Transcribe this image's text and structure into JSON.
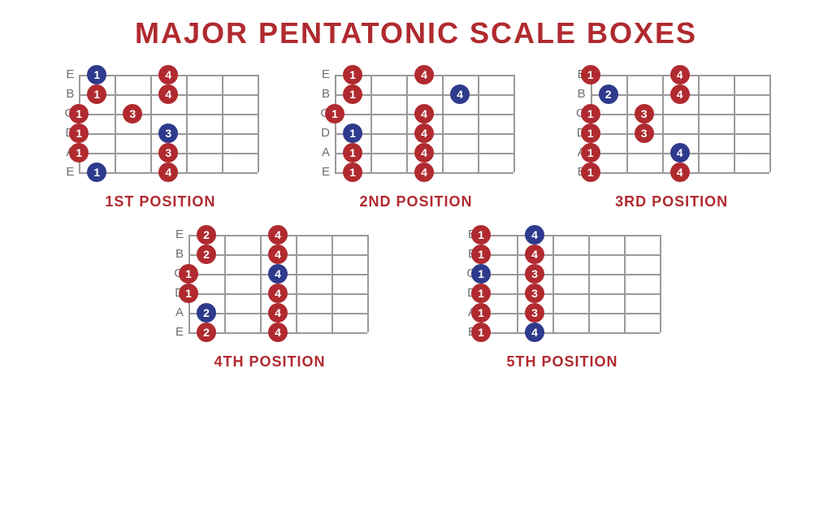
{
  "title": "MAJOR PENTATONIC SCALE BOXES",
  "colors": {
    "title": "#b02a2f",
    "red": "#b02a2f",
    "blue": "#2e3a8c",
    "grid": "#9a9a9a",
    "label": "#6e6e6e",
    "bg": "#ffffff"
  },
  "layout": {
    "frets": 5,
    "strings": 6,
    "fret_width": 44,
    "string_spacing": 24,
    "dot_diameter": 24,
    "string_names": [
      "E",
      "B",
      "G",
      "D",
      "A",
      "E"
    ]
  },
  "positions": [
    {
      "caption": "1ST POSITION",
      "dots": [
        {
          "string": 0,
          "fret": 1,
          "finger": "1",
          "color": "blue"
        },
        {
          "string": 0,
          "fret": 3,
          "finger": "4",
          "color": "red"
        },
        {
          "string": 1,
          "fret": 1,
          "finger": "1",
          "color": "red"
        },
        {
          "string": 1,
          "fret": 3,
          "finger": "4",
          "color": "red"
        },
        {
          "string": 2,
          "fret": 0,
          "finger": "1",
          "color": "red"
        },
        {
          "string": 2,
          "fret": 2,
          "finger": "3",
          "color": "red"
        },
        {
          "string": 3,
          "fret": 0,
          "finger": "1",
          "color": "red"
        },
        {
          "string": 3,
          "fret": 3,
          "finger": "3",
          "color": "blue"
        },
        {
          "string": 4,
          "fret": 0,
          "finger": "1",
          "color": "red"
        },
        {
          "string": 4,
          "fret": 3,
          "finger": "3",
          "color": "red"
        },
        {
          "string": 5,
          "fret": 1,
          "finger": "1",
          "color": "blue"
        },
        {
          "string": 5,
          "fret": 3,
          "finger": "4",
          "color": "red"
        }
      ]
    },
    {
      "caption": "2ND POSITION",
      "dots": [
        {
          "string": 0,
          "fret": 1,
          "finger": "1",
          "color": "red"
        },
        {
          "string": 0,
          "fret": 3,
          "finger": "4",
          "color": "red"
        },
        {
          "string": 1,
          "fret": 1,
          "finger": "1",
          "color": "red"
        },
        {
          "string": 1,
          "fret": 4,
          "finger": "4",
          "color": "blue"
        },
        {
          "string": 2,
          "fret": 0,
          "finger": "1",
          "color": "red"
        },
        {
          "string": 2,
          "fret": 3,
          "finger": "4",
          "color": "red"
        },
        {
          "string": 3,
          "fret": 1,
          "finger": "1",
          "color": "blue"
        },
        {
          "string": 3,
          "fret": 3,
          "finger": "4",
          "color": "red"
        },
        {
          "string": 4,
          "fret": 1,
          "finger": "1",
          "color": "red"
        },
        {
          "string": 4,
          "fret": 3,
          "finger": "4",
          "color": "red"
        },
        {
          "string": 5,
          "fret": 1,
          "finger": "1",
          "color": "red"
        },
        {
          "string": 5,
          "fret": 3,
          "finger": "4",
          "color": "red"
        }
      ]
    },
    {
      "caption": "3RD POSITION",
      "dots": [
        {
          "string": 0,
          "fret": 0,
          "finger": "1",
          "color": "red"
        },
        {
          "string": 0,
          "fret": 3,
          "finger": "4",
          "color": "red"
        },
        {
          "string": 1,
          "fret": 1,
          "finger": "2",
          "color": "blue"
        },
        {
          "string": 1,
          "fret": 3,
          "finger": "4",
          "color": "red"
        },
        {
          "string": 2,
          "fret": 0,
          "finger": "1",
          "color": "red"
        },
        {
          "string": 2,
          "fret": 2,
          "finger": "3",
          "color": "red"
        },
        {
          "string": 3,
          "fret": 0,
          "finger": "1",
          "color": "red"
        },
        {
          "string": 3,
          "fret": 2,
          "finger": "3",
          "color": "red"
        },
        {
          "string": 4,
          "fret": 0,
          "finger": "1",
          "color": "red"
        },
        {
          "string": 4,
          "fret": 3,
          "finger": "4",
          "color": "blue"
        },
        {
          "string": 5,
          "fret": 0,
          "finger": "1",
          "color": "red"
        },
        {
          "string": 5,
          "fret": 3,
          "finger": "4",
          "color": "red"
        }
      ]
    },
    {
      "caption": "4TH POSITION",
      "dots": [
        {
          "string": 0,
          "fret": 1,
          "finger": "2",
          "color": "red"
        },
        {
          "string": 0,
          "fret": 3,
          "finger": "4",
          "color": "red"
        },
        {
          "string": 1,
          "fret": 1,
          "finger": "2",
          "color": "red"
        },
        {
          "string": 1,
          "fret": 3,
          "finger": "4",
          "color": "red"
        },
        {
          "string": 2,
          "fret": 0,
          "finger": "1",
          "color": "red"
        },
        {
          "string": 2,
          "fret": 3,
          "finger": "4",
          "color": "blue"
        },
        {
          "string": 3,
          "fret": 0,
          "finger": "1",
          "color": "red"
        },
        {
          "string": 3,
          "fret": 3,
          "finger": "4",
          "color": "red"
        },
        {
          "string": 4,
          "fret": 1,
          "finger": "2",
          "color": "blue"
        },
        {
          "string": 4,
          "fret": 3,
          "finger": "4",
          "color": "red"
        },
        {
          "string": 5,
          "fret": 1,
          "finger": "2",
          "color": "red"
        },
        {
          "string": 5,
          "fret": 3,
          "finger": "4",
          "color": "red"
        }
      ]
    },
    {
      "caption": "5TH POSITION",
      "dots": [
        {
          "string": 0,
          "fret": 0,
          "finger": "1",
          "color": "red"
        },
        {
          "string": 0,
          "fret": 2,
          "finger": "4",
          "color": "blue"
        },
        {
          "string": 1,
          "fret": 0,
          "finger": "1",
          "color": "red"
        },
        {
          "string": 1,
          "fret": 2,
          "finger": "4",
          "color": "red"
        },
        {
          "string": 2,
          "fret": 0,
          "finger": "1",
          "color": "blue"
        },
        {
          "string": 2,
          "fret": 2,
          "finger": "3",
          "color": "red"
        },
        {
          "string": 3,
          "fret": 0,
          "finger": "1",
          "color": "red"
        },
        {
          "string": 3,
          "fret": 2,
          "finger": "3",
          "color": "red"
        },
        {
          "string": 4,
          "fret": 0,
          "finger": "1",
          "color": "red"
        },
        {
          "string": 4,
          "fret": 2,
          "finger": "3",
          "color": "red"
        },
        {
          "string": 5,
          "fret": 0,
          "finger": "1",
          "color": "red"
        },
        {
          "string": 5,
          "fret": 2,
          "finger": "4",
          "color": "blue"
        }
      ]
    }
  ]
}
